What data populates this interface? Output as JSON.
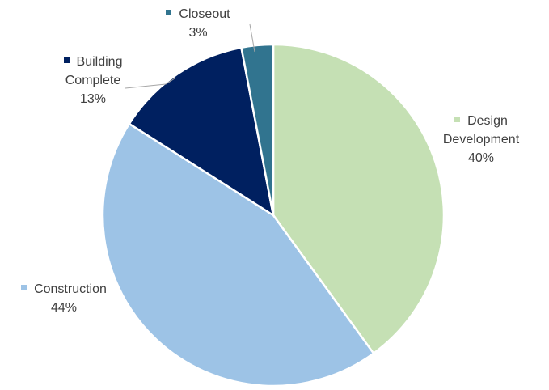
{
  "chart_data": {
    "type": "pie",
    "title": "",
    "start_angle_deg": 0,
    "direction": "clockwise",
    "slices": [
      {
        "name": "Design Development",
        "name_lines": [
          "Design",
          "Development"
        ],
        "value": 40,
        "percent_label": "40%",
        "color": "#C5E0B4"
      },
      {
        "name": "Construction",
        "name_lines": [
          "Construction"
        ],
        "value": 44,
        "percent_label": "44%",
        "color": "#9DC3E6"
      },
      {
        "name": "Building Complete",
        "name_lines": [
          "Building",
          "Complete"
        ],
        "value": 13,
        "percent_label": "13%",
        "color": "#002060"
      },
      {
        "name": "Closeout",
        "name_lines": [
          "Closeout"
        ],
        "value": 3,
        "percent_label": "3%",
        "color": "#31748F"
      }
    ],
    "leader_line_color": "#A6A6A6",
    "label_text_color": "#404040",
    "slice_border_color": "#FFFFFF"
  }
}
